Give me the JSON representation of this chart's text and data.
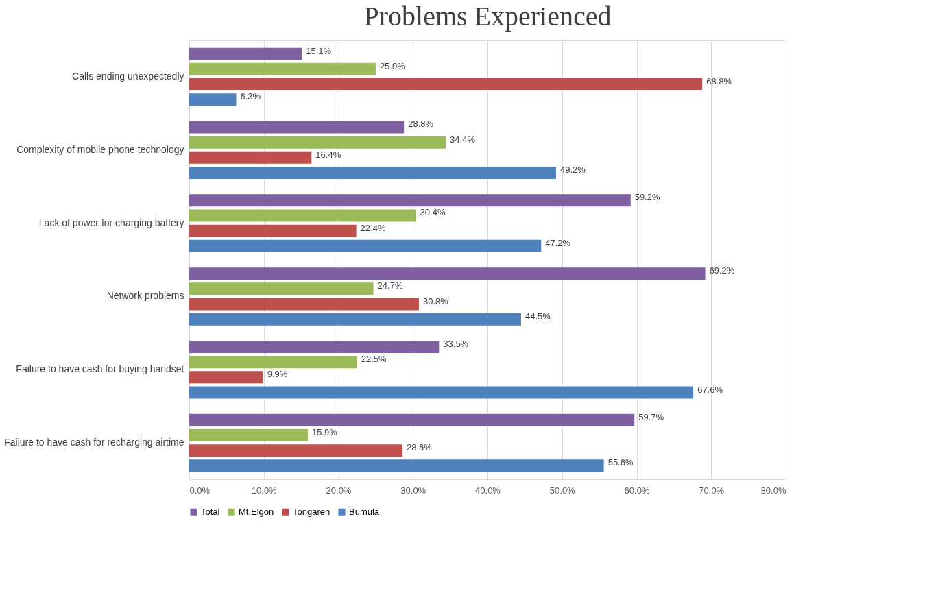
{
  "chart_data": {
    "type": "bar",
    "orientation": "horizontal",
    "title": "Problems Experienced",
    "categories": [
      "Calls ending unexpectedly",
      "Complexity of mobile phone technology",
      "Lack of power for charging battery",
      "Network problems",
      "Failure to have cash for buying handset",
      "Failure to have cash for recharging airtime"
    ],
    "series": [
      {
        "name": "Total",
        "color": "#7f60a0",
        "values": [
          15.1,
          28.8,
          59.2,
          69.2,
          33.5,
          59.7
        ],
        "value_labels": [
          "15.1%",
          "28.8%",
          "59.2%",
          "69.2%",
          "33.5%",
          "59.7%"
        ]
      },
      {
        "name": "Mt.Elgon",
        "color": "#9bbb59",
        "values": [
          25.0,
          34.4,
          30.4,
          24.7,
          22.5,
          15.9
        ],
        "value_labels": [
          "25.0%",
          "34.4%",
          "30.4%",
          "24.7%",
          "22.5%",
          "15.9%"
        ]
      },
      {
        "name": "Tongaren",
        "color": "#c0504d",
        "values": [
          68.8,
          16.4,
          22.4,
          30.8,
          9.9,
          28.6
        ],
        "value_labels": [
          "68.8%",
          "16.4%",
          "22.4%",
          "30.8%",
          "9.9%",
          "28.6%"
        ]
      },
      {
        "name": "Bumula",
        "color": "#4f81bd",
        "values": [
          6.3,
          49.2,
          47.2,
          44.5,
          67.6,
          55.6
        ],
        "value_labels": [
          "6.3%",
          "49.2%",
          "47.2%",
          "44.5%",
          "67.6%",
          "55.6%"
        ]
      }
    ],
    "xlim": [
      0,
      80
    ],
    "xticks": [
      {
        "value": 0,
        "label": "0.0%"
      },
      {
        "value": 10,
        "label": "10.0%"
      },
      {
        "value": 20,
        "label": "20.0%"
      },
      {
        "value": 30,
        "label": "30.0%"
      },
      {
        "value": 40,
        "label": "40.0%"
      },
      {
        "value": 50,
        "label": "50.0%"
      },
      {
        "value": 60,
        "label": "60.0%"
      },
      {
        "value": 70,
        "label": "70.0%"
      },
      {
        "value": 80,
        "label": "80.0%"
      }
    ],
    "grid": "x",
    "legend": "bottom"
  }
}
